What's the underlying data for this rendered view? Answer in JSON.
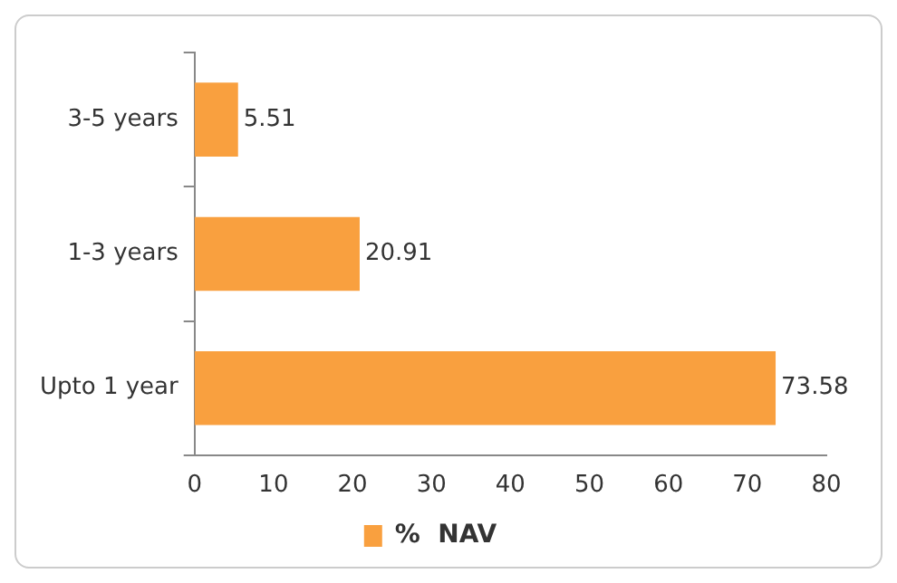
{
  "chart_data": {
    "type": "bar",
    "orientation": "horizontal",
    "categories": [
      "3-5 years",
      "1-3 years",
      "Upto 1 year"
    ],
    "series": [
      {
        "name": "%  NAV",
        "color": "#f9a03f",
        "values": [
          5.51,
          20.91,
          73.58
        ]
      }
    ],
    "xlim": [
      0,
      80
    ],
    "xticks": [
      0,
      10,
      20,
      30,
      40,
      50,
      60,
      70,
      80
    ],
    "grid": false,
    "legend": "bottom",
    "data_labels": true
  }
}
